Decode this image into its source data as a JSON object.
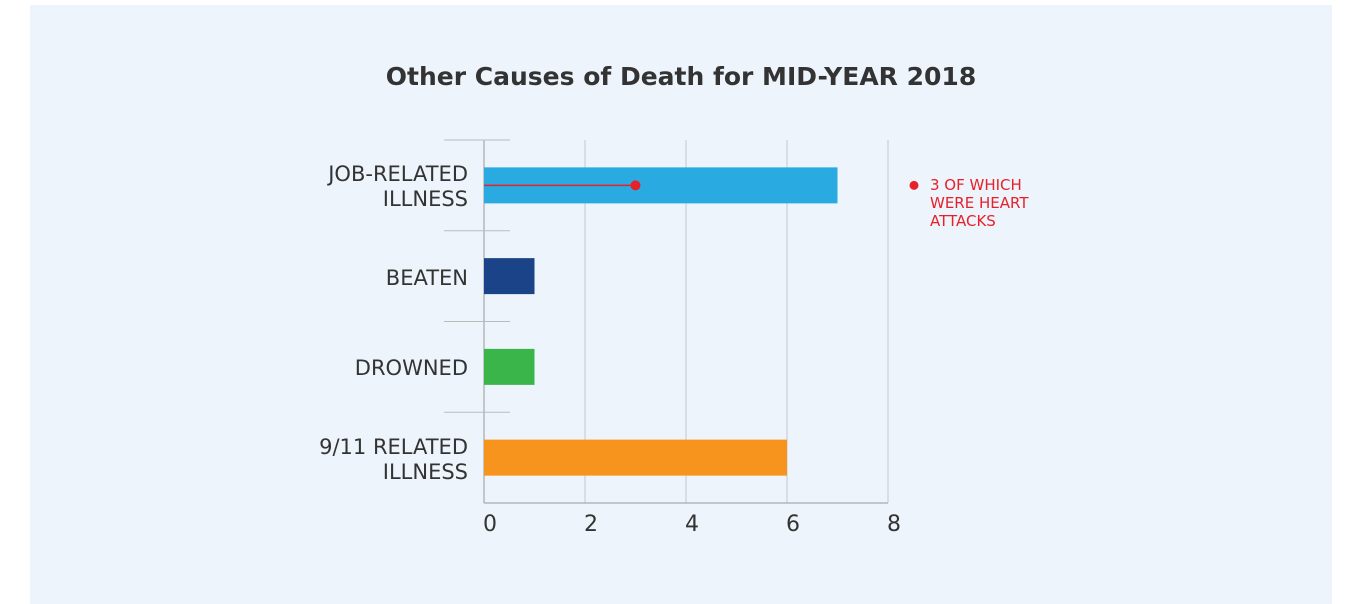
{
  "chart_data": {
    "type": "bar",
    "orientation": "horizontal",
    "title": "Other Causes of Death for MID-YEAR 2018",
    "categories": [
      "JOB-RELATED ILLNESS",
      "BEATEN",
      "DROWNED",
      "9/11 RELATED ILLNESS"
    ],
    "values": [
      7,
      1,
      1,
      6
    ],
    "colors": [
      "#29abe2",
      "#1b4488",
      "#3ab54a",
      "#f7941d"
    ],
    "xlim": [
      0,
      8
    ],
    "xticks": [
      0,
      2,
      4,
      6,
      8
    ],
    "grid": true,
    "annotation": {
      "text": "3 OF WHICH WERE HEART ATTACKS",
      "value": 3,
      "color": "#e8202a"
    }
  }
}
